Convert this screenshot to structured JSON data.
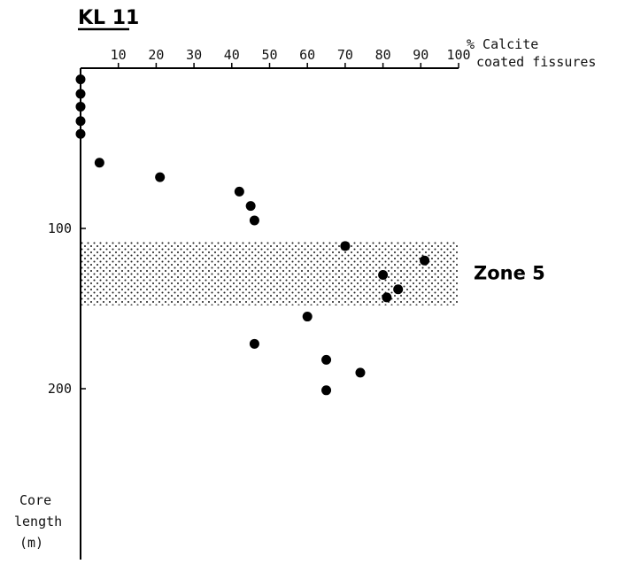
{
  "title": "KL 11",
  "x_axis_label": [
    "% Calcite",
    "coated fissures"
  ],
  "y_axis_label": [
    "Core",
    "length",
    "(m)"
  ],
  "zone_label": "Zone 5",
  "chart_data": {
    "type": "scatter",
    "title": "KL 11",
    "xlabel": "% Calcite coated fissures",
    "ylabel": "Core length (m)",
    "xlim": [
      0,
      100
    ],
    "ylim": [
      0,
      230
    ],
    "x_axis_position": "top",
    "y_axis_inverted": true,
    "x_ticks": [
      10,
      20,
      30,
      40,
      50,
      60,
      70,
      80,
      90,
      100
    ],
    "y_ticks": [
      100,
      200
    ],
    "shaded_band": {
      "label": "Zone 5",
      "y_from": 108,
      "y_to": 148
    },
    "points": [
      {
        "x": 0,
        "y": 7
      },
      {
        "x": 0,
        "y": 16
      },
      {
        "x": 0,
        "y": 24
      },
      {
        "x": 0,
        "y": 33
      },
      {
        "x": 0,
        "y": 41
      },
      {
        "x": 5,
        "y": 59
      },
      {
        "x": 21,
        "y": 68
      },
      {
        "x": 42,
        "y": 77
      },
      {
        "x": 45,
        "y": 86
      },
      {
        "x": 46,
        "y": 95
      },
      {
        "x": 70,
        "y": 111
      },
      {
        "x": 91,
        "y": 120
      },
      {
        "x": 80,
        "y": 129
      },
      {
        "x": 84,
        "y": 138
      },
      {
        "x": 81,
        "y": 143
      },
      {
        "x": 60,
        "y": 155
      },
      {
        "x": 46,
        "y": 172
      },
      {
        "x": 65,
        "y": 182
      },
      {
        "x": 74,
        "y": 190
      },
      {
        "x": 65,
        "y": 201
      }
    ]
  }
}
